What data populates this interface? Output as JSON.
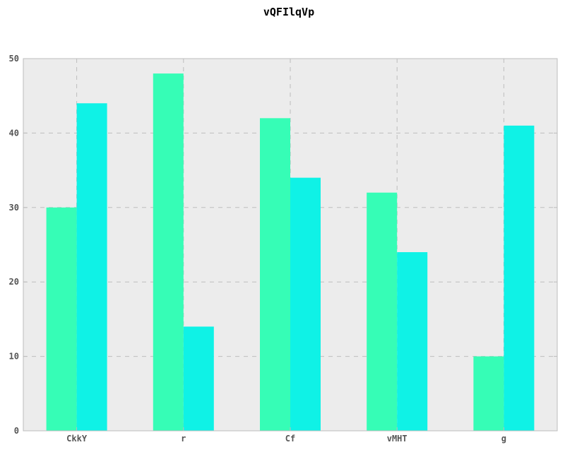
{
  "chart_data": {
    "type": "bar",
    "title": "vQFIlqVp",
    "xlabel": "",
    "ylabel": "",
    "categories": [
      "CkkY",
      "r",
      "Cf",
      "vMHT",
      "g"
    ],
    "series": [
      {
        "values": [
          30,
          48,
          42,
          32,
          10
        ],
        "color": "#36fdb6"
      },
      {
        "values": [
          44,
          14,
          34,
          24,
          41
        ],
        "color": "#0ff2e6"
      }
    ],
    "ylim": [
      0,
      50
    ],
    "yticks": [
      0,
      10,
      20,
      30,
      40,
      50
    ],
    "grid": true,
    "legend": "none"
  },
  "colors": {
    "plot_background": "#ececec",
    "grid": "#bdbdbd",
    "axis_frame": "#bcbcbc",
    "tick_text": "#555555"
  }
}
